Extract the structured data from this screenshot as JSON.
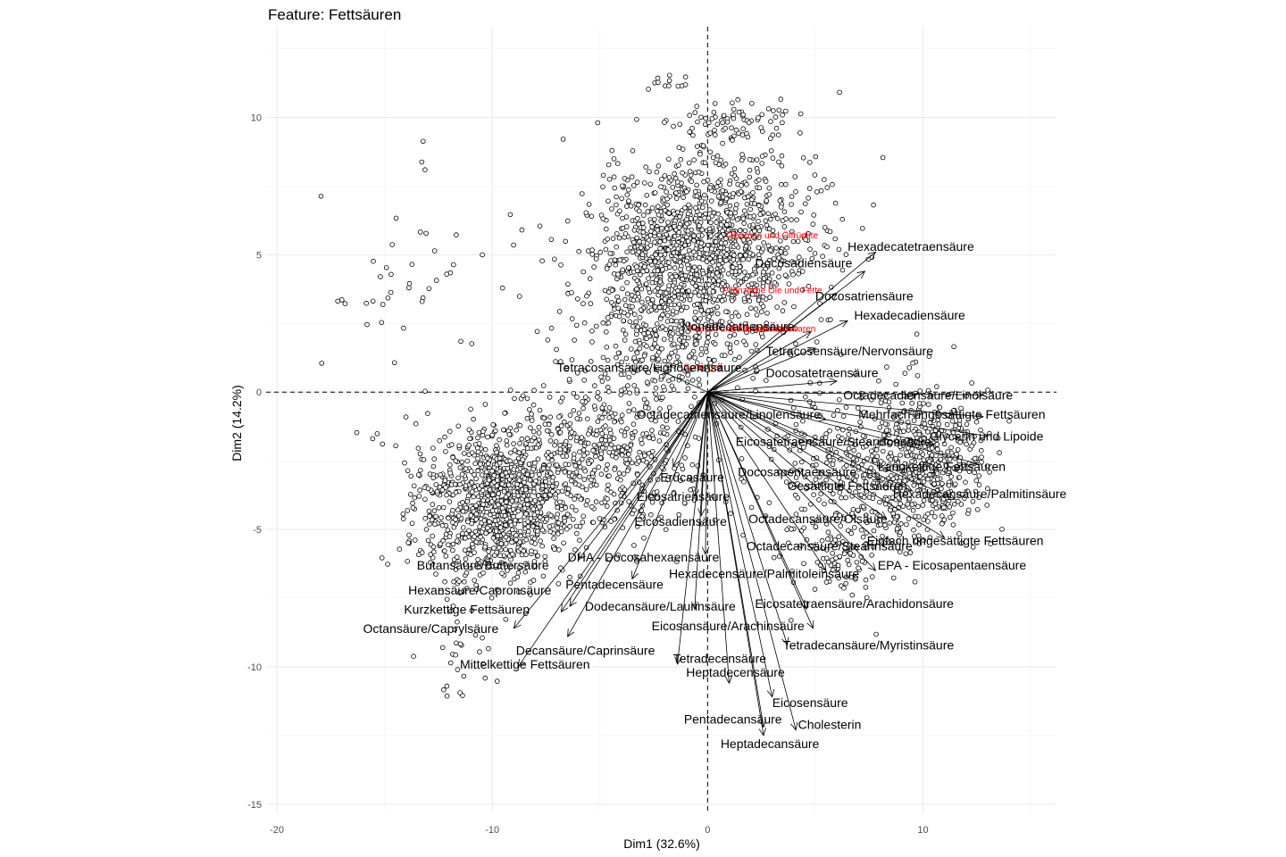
{
  "chart_data": {
    "type": "scatter",
    "title": "Feature: Fettsäuren",
    "xlabel": "Dim1 (32.6%)",
    "ylabel": "Dim2 (14.2%)",
    "xlim": [
      -20.5,
      16.2
    ],
    "ylim": [
      -15.3,
      13.3
    ],
    "xticks": [
      -20,
      -10,
      0,
      10
    ],
    "yticks": [
      -15,
      -10,
      -5,
      0,
      5,
      10
    ],
    "grid": true,
    "reference_lines": {
      "x": 0,
      "y": 0,
      "style": "dashed"
    },
    "arrow_color": "#000000",
    "supplementary_color": "#ff0000",
    "variables": [
      {
        "name": "Hexadecatetraensäure",
        "x": 7.8,
        "y": 5.1,
        "lx": 6.5,
        "ly": 5.3
      },
      {
        "name": "Docosadiensäure",
        "x": 7.3,
        "y": 4.4,
        "lx": 2.2,
        "ly": 4.7
      },
      {
        "name": "Docosatriensäure",
        "x": 6.0,
        "y": 3.6,
        "lx": 5.0,
        "ly": 3.5
      },
      {
        "name": "Hexadecadiensäure",
        "x": 6.5,
        "y": 2.6,
        "lx": 6.8,
        "ly": 2.8
      },
      {
        "name": "Nonadecatriensäure",
        "x": 4.8,
        "y": 2.2,
        "lx": -1.2,
        "ly": 2.4
      },
      {
        "name": "Tetracosensäure/Nervonsäure",
        "x": 5.0,
        "y": 1.6,
        "lx": 2.7,
        "ly": 1.5
      },
      {
        "name": "Docosatetraensäure",
        "x": 6.0,
        "y": 0.4,
        "lx": 2.7,
        "ly": 0.7
      },
      {
        "name": "Tetracosansäure/Lignocerinsäure",
        "x": -2.5,
        "y": 0.9,
        "lx": -7.0,
        "ly": 0.9
      },
      {
        "name": "Octadecadiensäure/Linolsäure",
        "x": 12.8,
        "y": -0.1,
        "lx": 6.3,
        "ly": -0.1
      },
      {
        "name": "Mehrfach ungesättigte Fettsäuren",
        "x": 12.8,
        "y": -0.9,
        "lx": 7.0,
        "ly": -0.8
      },
      {
        "name": "Octadecatriensäure/Linolensäure",
        "x": 5.5,
        "y": -1.0,
        "lx": -3.3,
        "ly": -0.8
      },
      {
        "name": "Glycerin und Lipoide",
        "x": 13.0,
        "y": -1.6,
        "lx": 10.3,
        "ly": -1.6
      },
      {
        "name": "Eicosatetraensäure/Stearidonsäure",
        "x": 10.5,
        "y": -1.9,
        "lx": 1.3,
        "ly": -1.8
      },
      {
        "name": "Langkettige Fettsäuren",
        "x": 12.5,
        "y": -2.6,
        "lx": 7.9,
        "ly": -2.7
      },
      {
        "name": "Docosapentaensäure",
        "x": 8.0,
        "y": -3.2,
        "lx": 1.4,
        "ly": -2.9
      },
      {
        "name": "Erucasäure",
        "x": -1.6,
        "y": -2.7,
        "lx": -2.2,
        "ly": -3.1
      },
      {
        "name": "Gesättigte Fettsäuren",
        "x": 9.5,
        "y": -3.6,
        "lx": 3.7,
        "ly": -3.4
      },
      {
        "name": "Hexadecansäure/Palmitinsäure",
        "x": 11.5,
        "y": -3.9,
        "lx": 8.6,
        "ly": -3.7
      },
      {
        "name": "Eicosatriensäure",
        "x": -0.6,
        "y": -3.8,
        "lx": -3.3,
        "ly": -3.8
      },
      {
        "name": "Octadecansäure/Ölsäure",
        "x": 8.3,
        "y": -4.6,
        "lx": 1.9,
        "ly": -4.6
      },
      {
        "name": "Eicosadiensäure",
        "x": -0.3,
        "y": -4.5,
        "lx": -3.4,
        "ly": -4.7
      },
      {
        "name": "Einfach ungesättigte Fettsäuren",
        "x": 11.0,
        "y": -5.3,
        "lx": 7.4,
        "ly": -5.4
      },
      {
        "name": "Octadecansäure/Stearinsäure",
        "x": 8.2,
        "y": -5.6,
        "lx": 1.8,
        "ly": -5.6
      },
      {
        "name": "EPA - Eicosapentaensäure",
        "x": 7.8,
        "y": -6.5,
        "lx": 7.9,
        "ly": -6.3
      },
      {
        "name": "DHA - Docosahexaensäure",
        "x": -0.1,
        "y": -5.9,
        "lx": -6.5,
        "ly": -6.0
      },
      {
        "name": "Butansäure/Buttersäure",
        "x": -6.0,
        "y": -6.1,
        "lx": -13.5,
        "ly": -6.3
      },
      {
        "name": "Hexadecensäure/Palmitoleinsäure",
        "x": 5.5,
        "y": -6.5,
        "lx": -1.8,
        "ly": -6.6
      },
      {
        "name": "Pentadecensäure",
        "x": -3.5,
        "y": -6.8,
        "lx": -6.6,
        "ly": -7.0
      },
      {
        "name": "Hexansäure/Capronsäure",
        "x": -6.4,
        "y": -7.8,
        "lx": -13.9,
        "ly": -7.2
      },
      {
        "name": "Dodecansäure/Laurinsäure",
        "x": -0.6,
        "y": -7.9,
        "lx": -5.7,
        "ly": -7.8
      },
      {
        "name": "Eicosatetraensäure/Arachidonsäure",
        "x": 4.6,
        "y": -7.9,
        "lx": 2.2,
        "ly": -7.7
      },
      {
        "name": "Kurzkettige Fettsäuren",
        "x": -6.8,
        "y": -8.0,
        "lx": -14.1,
        "ly": -7.9
      },
      {
        "name": "Eicosansäure/Arachinsäure",
        "x": 4.9,
        "y": -8.6,
        "lx": -2.6,
        "ly": -8.5
      },
      {
        "name": "Octansäure/Caprylsäure",
        "x": -9.0,
        "y": -8.6,
        "lx": -16.0,
        "ly": -8.6
      },
      {
        "name": "Decansäure/Caprinsäure",
        "x": -6.5,
        "y": -8.9,
        "lx": -8.9,
        "ly": -9.4
      },
      {
        "name": "Tetradecansäure/Myristinsäure",
        "x": 3.7,
        "y": -9.2,
        "lx": 3.5,
        "ly": -9.2
      },
      {
        "name": "Tetradecensäure",
        "x": -1.4,
        "y": -9.9,
        "lx": -1.6,
        "ly": -9.7
      },
      {
        "name": "Mittelkettige Fettsäuren",
        "x": -8.8,
        "y": -10.0,
        "lx": -11.5,
        "ly": -9.9
      },
      {
        "name": "Heptadecensäure",
        "x": 1.0,
        "y": -10.6,
        "lx": -1.0,
        "ly": -10.2
      },
      {
        "name": "Eicosensäure",
        "x": 3.0,
        "y": -11.1,
        "lx": 3.0,
        "ly": -11.3
      },
      {
        "name": "Pentadecansäure",
        "x": 2.6,
        "y": -12.2,
        "lx": -1.1,
        "ly": -11.9
      },
      {
        "name": "Cholesterin",
        "x": 4.1,
        "y": -12.3,
        "lx": 4.2,
        "ly": -12.1
      },
      {
        "name": "Heptadecansäure",
        "x": 2.6,
        "y": -12.5,
        "lx": 0.6,
        "ly": -12.8
      }
    ],
    "supplementary": [
      {
        "name": "Ölsamen und Ölfrüchte",
        "x": 3.0,
        "y": 5.7
      },
      {
        "name": "Pflanzliche Öle und Fette",
        "x": 3.0,
        "y": 3.7
      },
      {
        "name": "Fleisch und Fleischwaren",
        "x": 1.5,
        "y": 2.3
      },
      {
        "name": "Fisch und Fischwaren",
        "x": 3.0,
        "y": 2.3
      },
      {
        "name": "Sonstiges",
        "x": -0.2,
        "y": 0.9
      }
    ]
  }
}
